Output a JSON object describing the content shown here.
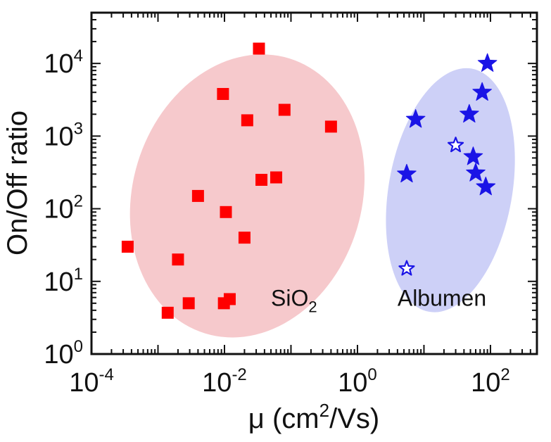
{
  "chart_data": {
    "type": "scatter",
    "xscale": "log",
    "yscale": "log",
    "xlim": [
      0.0001,
      500
    ],
    "ylim": [
      1,
      50000
    ],
    "xlabel_base": "μ (cm",
    "xlabel_sup": "2",
    "xlabel_tail": "/Vs)",
    "ylabel": "On/Off ratio",
    "xticks": [
      {
        "base": "10",
        "exp": "-4",
        "value": 0.0001
      },
      {
        "base": "10",
        "exp": "-2",
        "value": 0.01
      },
      {
        "base": "10",
        "exp": "0",
        "value": 1
      },
      {
        "base": "10",
        "exp": "2",
        "value": 100
      }
    ],
    "yticks": [
      {
        "base": "10",
        "exp": "0",
        "value": 1
      },
      {
        "base": "10",
        "exp": "1",
        "value": 10
      },
      {
        "base": "10",
        "exp": "2",
        "value": 100
      },
      {
        "base": "10",
        "exp": "3",
        "value": 1000
      },
      {
        "base": "10",
        "exp": "4",
        "value": 10000
      }
    ],
    "groups": [
      {
        "name": "SiO2",
        "label_main": "SiO",
        "label_sub": "2",
        "color": "#ff0000",
        "region_color": "#f6c9cc",
        "marker": "square",
        "region": {
          "cx": 0.022,
          "cy": 150,
          "x_span": [
            0.00018,
            0.5
          ],
          "y_span": [
            2.2,
            20000
          ],
          "tilt_deg": 17
        },
        "label_at": {
          "x": 0.05,
          "y": 6
        },
        "points": [
          {
            "x": 0.00035,
            "y": 30
          },
          {
            "x": 0.0014,
            "y": 3.7
          },
          {
            "x": 0.002,
            "y": 20
          },
          {
            "x": 0.0029,
            "y": 5
          },
          {
            "x": 0.004,
            "y": 150
          },
          {
            "x": 0.0095,
            "y": 3800
          },
          {
            "x": 0.0098,
            "y": 5
          },
          {
            "x": 0.0105,
            "y": 90
          },
          {
            "x": 0.012,
            "y": 5.7
          },
          {
            "x": 0.02,
            "y": 40
          },
          {
            "x": 0.022,
            "y": 1650
          },
          {
            "x": 0.033,
            "y": 16000
          },
          {
            "x": 0.036,
            "y": 250
          },
          {
            "x": 0.06,
            "y": 270
          },
          {
            "x": 0.08,
            "y": 2300
          },
          {
            "x": 0.4,
            "y": 1350
          }
        ]
      },
      {
        "name": "Albumen",
        "label_main": "Albumen",
        "label_sub": "",
        "color": "#1a14e6",
        "region_color": "#cdd0f7",
        "marker": "star",
        "region": {
          "cx": 25,
          "cy": 180,
          "x_span": [
            2.5,
            180
          ],
          "y_span": [
            8,
            20000
          ],
          "tilt_deg": 10
        },
        "label_at": {
          "x": 4,
          "y": 6
        },
        "points": [
          {
            "x": 5.5,
            "y": 300,
            "filled": true
          },
          {
            "x": 7.5,
            "y": 1700,
            "filled": true
          },
          {
            "x": 5.5,
            "y": 15,
            "filled": false
          },
          {
            "x": 30,
            "y": 750,
            "filled": false
          },
          {
            "x": 48,
            "y": 2000,
            "filled": true
          },
          {
            "x": 55,
            "y": 520,
            "filled": true
          },
          {
            "x": 60,
            "y": 310,
            "filled": true
          },
          {
            "x": 75,
            "y": 4000,
            "filled": true
          },
          {
            "x": 85,
            "y": 200,
            "filled": true
          },
          {
            "x": 90,
            "y": 10000,
            "filled": true
          }
        ]
      }
    ]
  }
}
